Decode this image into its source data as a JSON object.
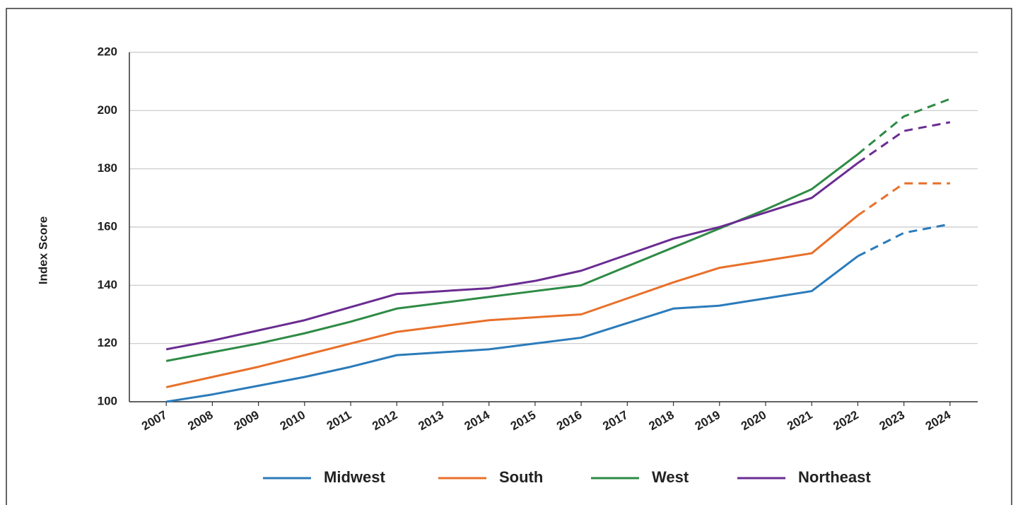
{
  "chart_data": {
    "type": "line",
    "y_label": "Index Score",
    "x": [
      2007,
      2008,
      2009,
      2010,
      2011,
      2012,
      2013,
      2014,
      2015,
      2016,
      2017,
      2018,
      2019,
      2020,
      2021,
      2022,
      2023,
      2024
    ],
    "xlim": [
      2006.2,
      2024.6
    ],
    "xticks": [
      2007,
      2008,
      2009,
      2010,
      2011,
      2012,
      2013,
      2014,
      2015,
      2016,
      2017,
      2018,
      2019,
      2020,
      2021,
      2022,
      2023,
      2024
    ],
    "ylim": [
      100,
      220
    ],
    "yticks": [
      100,
      120,
      140,
      160,
      180,
      200,
      220
    ],
    "grid": true,
    "legend": "bottom",
    "projected_from": 2022,
    "series": [
      {
        "name": "Midwest",
        "color": "#2b7bba",
        "values": [
          100,
          102.5,
          105.5,
          108.5,
          112,
          116,
          117,
          118,
          120,
          122,
          127,
          132,
          133,
          135.5,
          138,
          150,
          158,
          161
        ]
      },
      {
        "name": "South",
        "color": "#e8702a",
        "values": [
          105,
          108.5,
          112,
          116,
          120,
          124,
          126,
          128,
          129,
          130,
          135.5,
          141,
          146,
          148.5,
          151,
          164,
          175,
          175
        ]
      },
      {
        "name": "West",
        "color": "#2e8b45",
        "values": [
          114,
          117,
          120,
          123.5,
          127.5,
          132,
          134,
          136,
          138,
          140,
          146.5,
          153,
          159.5,
          166,
          173,
          185,
          198,
          204
        ]
      },
      {
        "name": "Northeast",
        "color": "#6a2c91",
        "values": [
          118,
          121,
          124.5,
          128,
          132.5,
          137,
          138,
          139,
          141.5,
          145,
          150.5,
          156,
          160,
          165,
          170,
          182,
          193,
          196
        ]
      }
    ]
  }
}
